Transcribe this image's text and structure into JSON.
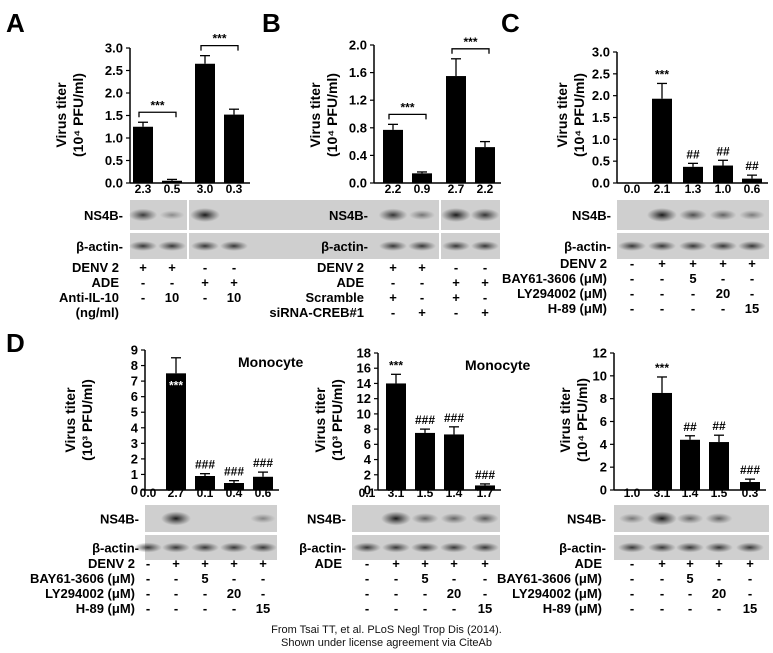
{
  "credit": {
    "line1": "From Tsai TT, et al. PLoS Negl Trop Dis (2014).",
    "line2": "Shown under license agreement via CiteAb"
  },
  "blot_labels": {
    "ns4b": "NS4B",
    "actin": "β-actin"
  },
  "chart_data": [
    {
      "panel": "A",
      "type": "bar",
      "title": "",
      "ylabel_line1": "Virus titer",
      "ylabel_line2": "(10⁴ PFU/ml)",
      "ylim": [
        0,
        3.0
      ],
      "yticks": [
        "0.0",
        "0.5",
        "1.0",
        "1.5",
        "2.0",
        "2.5",
        "3.0"
      ],
      "series": [
        {
          "values": [
            1.25,
            0.05,
            2.65,
            1.52
          ],
          "errors": [
            0.1,
            0.03,
            0.18,
            0.12
          ]
        }
      ],
      "bar_annotations": [
        "",
        "",
        "",
        ""
      ],
      "brackets": [
        {
          "from": 0,
          "to": 1,
          "label": "***"
        },
        {
          "from": 2,
          "to": 3,
          "label": "***"
        }
      ],
      "ratios": [
        "2.3",
        "0.5",
        "3.0",
        "0.3"
      ],
      "conditions": [
        {
          "label": "DENV 2",
          "values": [
            "+",
            "+",
            "-",
            "-"
          ]
        },
        {
          "label": "ADE",
          "values": [
            "-",
            "-",
            "+",
            "+"
          ]
        },
        {
          "label": "Anti-IL-10",
          "values": [
            "-",
            "10",
            "-",
            "10"
          ]
        },
        {
          "label": "(ng/ml)",
          "values": [
            "",
            "",
            "",
            ""
          ]
        }
      ]
    },
    {
      "panel": "B",
      "type": "bar",
      "title": "",
      "ylabel_line1": "Virus titer",
      "ylabel_line2": "(10⁴ PFU/ml)",
      "ylim": [
        0,
        2.0
      ],
      "yticks": [
        "0.0",
        "0.4",
        "0.8",
        "1.2",
        "1.6",
        "2.0"
      ],
      "series": [
        {
          "values": [
            0.77,
            0.14,
            1.55,
            0.52
          ],
          "errors": [
            0.08,
            0.02,
            0.25,
            0.08
          ]
        }
      ],
      "bar_annotations": [
        "",
        "",
        "",
        ""
      ],
      "brackets": [
        {
          "from": 0,
          "to": 1,
          "label": "***"
        },
        {
          "from": 2,
          "to": 3,
          "label": "***"
        }
      ],
      "ratios": [
        "2.2",
        "0.9",
        "2.7",
        "2.2"
      ],
      "conditions": [
        {
          "label": "DENV 2",
          "values": [
            "+",
            "+",
            "-",
            "-"
          ]
        },
        {
          "label": "ADE",
          "values": [
            "-",
            "-",
            "+",
            "+"
          ]
        },
        {
          "label": "Scramble",
          "values": [
            "+",
            "-",
            "+",
            "-"
          ]
        },
        {
          "label": "siRNA-CREB#1",
          "values": [
            "-",
            "+",
            "-",
            "+"
          ]
        }
      ]
    },
    {
      "panel": "C",
      "type": "bar",
      "title": "",
      "ylabel_line1": "Virus titer",
      "ylabel_line2": "(10⁴ PFU/ml)",
      "ylim": [
        0,
        3.0
      ],
      "yticks": [
        "0.0",
        "0.5",
        "1.0",
        "1.5",
        "2.0",
        "2.5",
        "3.0"
      ],
      "series": [
        {
          "values": [
            0,
            1.93,
            0.37,
            0.4,
            0.1
          ],
          "errors": [
            0,
            0.35,
            0.08,
            0.12,
            0.08
          ]
        }
      ],
      "bar_annotations": [
        "",
        "***",
        "##",
        "##",
        "##"
      ],
      "brackets": [],
      "ratios": [
        "0.0",
        "2.1",
        "1.3",
        "1.0",
        "0.6"
      ],
      "conditions": [
        {
          "label": "DENV 2",
          "values": [
            "-",
            "+",
            "+",
            "+",
            "+"
          ]
        },
        {
          "label": "BAY61-3606 (μM)",
          "values": [
            "-",
            "-",
            "5",
            "-",
            "-"
          ]
        },
        {
          "label": "LY294002 (μM)",
          "values": [
            "-",
            "-",
            "-",
            "20",
            "-"
          ]
        },
        {
          "label": "H-89 (μM)",
          "values": [
            "-",
            "-",
            "-",
            "-",
            "15"
          ]
        }
      ]
    },
    {
      "panel": "D",
      "type": "bar",
      "title": "Monocyte",
      "ylabel_line1": "Virus titer",
      "ylabel_line2": "(10³ PFU/ml)",
      "ylim": [
        0,
        9
      ],
      "yticks": [
        "0",
        "1",
        "2",
        "3",
        "4",
        "5",
        "6",
        "7",
        "8",
        "9"
      ],
      "series": [
        {
          "values": [
            0,
            7.5,
            0.9,
            0.45,
            0.85
          ],
          "errors": [
            0,
            1.0,
            0.15,
            0.15,
            0.3
          ]
        }
      ],
      "bar_annotations": [
        "",
        "***",
        "###",
        "###",
        "###"
      ],
      "brackets": [],
      "ratios": [
        "0.0",
        "2.7",
        "0.1",
        "0.4",
        "0.6"
      ],
      "conditions": [
        {
          "label": "DENV 2",
          "values": [
            "-",
            "+",
            "+",
            "+",
            "+"
          ]
        },
        {
          "label": "BAY61-3606 (μM)",
          "values": [
            "-",
            "-",
            "5",
            "-",
            "-"
          ]
        },
        {
          "label": "LY294002 (μM)",
          "values": [
            "-",
            "-",
            "-",
            "20",
            "-"
          ]
        },
        {
          "label": "H-89 (μM)",
          "values": [
            "-",
            "-",
            "-",
            "-",
            "15"
          ]
        }
      ]
    },
    {
      "panel": "",
      "type": "bar",
      "title": "Monocyte",
      "ylabel_line1": "Virus titer",
      "ylabel_line2": "(10³ PFU/ml)",
      "ylim": [
        0,
        18
      ],
      "yticks": [
        "0",
        "2",
        "4",
        "6",
        "8",
        "10",
        "12",
        "14",
        "16",
        "18"
      ],
      "series": [
        {
          "values": [
            0,
            14.0,
            7.5,
            7.3,
            0.6
          ],
          "errors": [
            0,
            1.2,
            0.5,
            1.0,
            0.2
          ]
        }
      ],
      "bar_annotations": [
        "",
        "***",
        "###",
        "###",
        "###"
      ],
      "brackets": [],
      "ratios": [
        "0.1",
        "3.1",
        "1.5",
        "1.4",
        "1.7"
      ],
      "conditions": [
        {
          "label": "ADE",
          "values": [
            "-",
            "+",
            "+",
            "+",
            "+"
          ]
        },
        {
          "label": "",
          "values": [
            "-",
            "-",
            "5",
            "-",
            "-"
          ]
        },
        {
          "label": "",
          "values": [
            "-",
            "-",
            "-",
            "20",
            "-"
          ]
        },
        {
          "label": "",
          "values": [
            "-",
            "-",
            "-",
            "-",
            "15"
          ]
        }
      ]
    },
    {
      "panel": "",
      "type": "bar",
      "title": "",
      "ylabel_line1": "Virus titer",
      "ylabel_line2": "(10⁴ PFU/ml)",
      "ylim": [
        0,
        12
      ],
      "yticks": [
        "0",
        "2",
        "4",
        "6",
        "8",
        "10",
        "12"
      ],
      "series": [
        {
          "values": [
            0,
            8.5,
            4.4,
            4.2,
            0.7
          ],
          "errors": [
            0,
            1.4,
            0.35,
            0.6,
            0.25
          ]
        }
      ],
      "bar_annotations": [
        "",
        "***",
        "##",
        "##",
        "###"
      ],
      "brackets": [],
      "ratios": [
        "1.0",
        "3.1",
        "1.4",
        "1.5",
        "0.3"
      ],
      "conditions": [
        {
          "label": "ADE",
          "values": [
            "-",
            "+",
            "+",
            "+",
            "+"
          ]
        },
        {
          "label": "BAY61-3606 (μM)",
          "values": [
            "-",
            "-",
            "5",
            "-",
            "-"
          ]
        },
        {
          "label": "LY294002 (μM)",
          "values": [
            "-",
            "-",
            "-",
            "20",
            "-"
          ]
        },
        {
          "label": "H-89 (μM)",
          "values": [
            "-",
            "-",
            "-",
            "-",
            "15"
          ]
        }
      ]
    }
  ]
}
